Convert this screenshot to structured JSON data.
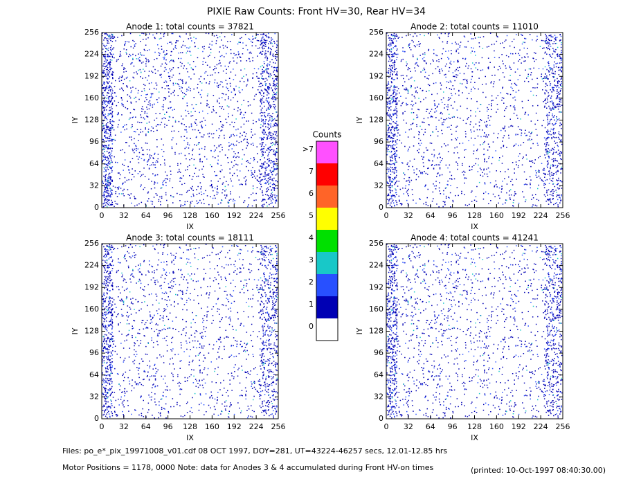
{
  "title": "PIXIE Raw Counts:  Front HV=30, Rear HV=34",
  "chart_data": [
    {
      "type": "heatmap",
      "title": "Anode 1: total counts = 37821",
      "xlabel": "IX",
      "ylabel": "IY",
      "xlim": [
        0,
        256
      ],
      "ylim": [
        0,
        256
      ],
      "xticks": [
        0,
        32,
        64,
        96,
        128,
        160,
        192,
        224,
        256
      ],
      "yticks": [
        0,
        32,
        64,
        96,
        128,
        160,
        192,
        224,
        256
      ]
    },
    {
      "type": "heatmap",
      "title": "Anode 2: total counts = 11010",
      "xlabel": "IX",
      "ylabel": "IY",
      "xlim": [
        0,
        256
      ],
      "ylim": [
        0,
        256
      ],
      "xticks": [
        0,
        32,
        64,
        96,
        128,
        160,
        192,
        224,
        256
      ],
      "yticks": [
        0,
        32,
        64,
        96,
        128,
        160,
        192,
        224,
        256
      ]
    },
    {
      "type": "heatmap",
      "title": "Anode 3: total counts = 18111",
      "xlabel": "IX",
      "ylabel": "IY",
      "xlim": [
        0,
        256
      ],
      "ylim": [
        0,
        256
      ],
      "xticks": [
        0,
        32,
        64,
        96,
        128,
        160,
        192,
        224,
        256
      ],
      "yticks": [
        0,
        32,
        64,
        96,
        128,
        160,
        192,
        224,
        256
      ]
    },
    {
      "type": "heatmap",
      "title": "Anode 4: total counts = 41241",
      "xlabel": "IX",
      "ylabel": "IY",
      "xlim": [
        0,
        256
      ],
      "ylim": [
        0,
        256
      ],
      "xticks": [
        0,
        32,
        64,
        96,
        128,
        160,
        192,
        224,
        256
      ],
      "yticks": [
        0,
        32,
        64,
        96,
        128,
        160,
        192,
        224,
        256
      ]
    }
  ],
  "colorbar": {
    "title": "Counts",
    "labels": [
      "0",
      "1",
      "2",
      "3",
      "4",
      "5",
      "6",
      "7",
      ">7"
    ],
    "colors": [
      "#ffffff",
      "#0000b4",
      "#2850ff",
      "#18c8c8",
      "#00e000",
      "#ffff00",
      "#ff6428",
      "#ff0000",
      "#ff50ff"
    ]
  },
  "footer": {
    "files": "Files: po_e*_pix_19971008_v01.cdf    08 OCT 1997, DOY=281, UT=43224-46257 secs, 12.01-12.85 hrs",
    "motor": "Motor Positions = 1178, 0000   Note: data for Anodes 3 & 4 accumulated during Front HV-on times",
    "printed": "(printed: 10-Oct-1997 08:40:30.00)"
  }
}
